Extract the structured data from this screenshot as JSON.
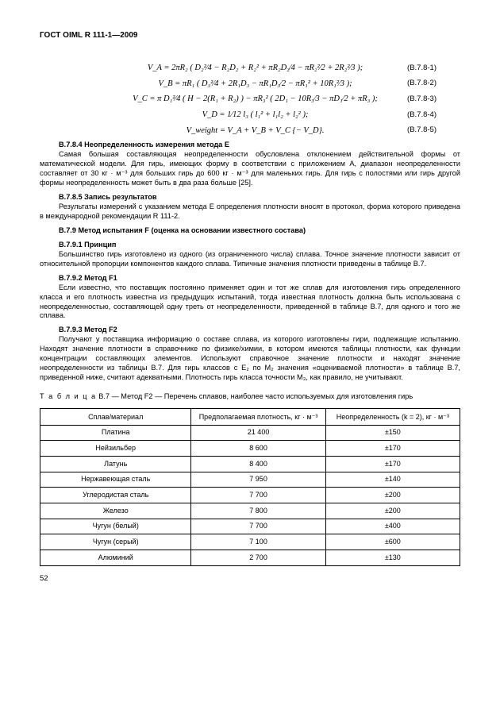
{
  "header": "ГОСТ OIML R 111-1—2009",
  "formulas": [
    {
      "expr": "V_A = 2πR₂ ( D₂²⁄4 − R₂D₂ + R₂² + πR₂D₂⁄4 − πR₂²⁄2 + 2R₂²⁄3 );",
      "ref": "(B.7.8-1)"
    },
    {
      "expr": "V_B = πR₁ ( D₃²⁄4 + 2R₁D₃ − πR₁D₃⁄2 − πR₁² + 10R₁²⁄3 );",
      "ref": "(B.7.8-2)"
    },
    {
      "expr": "V_C = π D₁²⁄4 ( H − 2(R₁ + R₂) ) − πR₃² ( 2D₁ − 10R₃⁄3 − πD₁⁄2 + πR₃ );",
      "ref": "(B.7.8-3)"
    },
    {
      "expr": "V_D = 1⁄12 l₃ ( l₁² + l₁l₂ + l₂² );",
      "ref": "(B.7.8-4)"
    },
    {
      "expr": "V_weight = V_A + V_B + V_C {− V_D}.",
      "ref": "(B.7.8-5)"
    }
  ],
  "sections": {
    "s1_title": "B.7.8.4 Неопределенность измерения метода E",
    "s1_p1": "Самая большая составляющая неопределенности обусловлена отклонением действительной формы от математической модели. Для гирь, имеющих форму в соответствии с приложением A, диапазон неопределенности составляет от 30 кг · м⁻³ для больших гирь до 600 кг · м⁻³ для маленьких гирь. Для гирь с полостями или гирь другой формы неопределенность может быть в два раза больше [25].",
    "s2_title": "B.7.8.5 Запись результатов",
    "s2_p1": "Результаты измерений с указанием метода E определения плотности вносят в протокол, форма которого приведена в международной рекомендации R 111-2.",
    "s3_title": "B.7.9 Метод испытания F (оценка на основании известного состава)",
    "s4_title": "B.7.9.1 Принцип",
    "s4_p1": "Большинство гирь изготовлено из одного (из ограниченного числа) сплава. Точное значение плотности зависит от относительной пропорции компонентов каждого сплава. Типичные значения плотности приведены в таблице B.7.",
    "s5_title": "B.7.9.2 Метод F1",
    "s5_p1": "Если известно, что поставщик постоянно применяет один и тот же сплав для изготовления гирь определенного класса и его плотность известна из предыдущих испытаний, тогда известная плотность должна быть использована с неопределенностью, составляющей одну треть от неопределенности, приведенной в таблице B.7, для одного и того же сплава.",
    "s6_title": "B.7.9.3 Метод F2",
    "s6_p1": "Получают у поставщика информацию о составе сплава, из которого изготовлены гири, подлежащие испытанию. Находят значение плотности в справочнике по физике/химии, в котором имеются таблицы плотности, как функции концентрации составляющих элементов. Используют справочное значение плотности и находят значение неопределенности из таблицы B.7. Для гирь классов с E₂ по M₂ значения «оцениваемой плотности» в таблице B.7, приведенной ниже, считают адекватными. Плотность гирь класса точности M₃, как правило, не учитывают."
  },
  "table_caption_prefix": "Т а б л и ц а",
  "table_caption_rest": "  B.7 — Метод F2 — Перечень сплавов, наиболее часто используемых для изготовления гирь",
  "table": {
    "headers": [
      "Сплав/материал",
      "Предполагаемая плотность,\nкг · м⁻³",
      "Неопределенность (k = 2),\nкг · м⁻³"
    ],
    "rows": [
      [
        "Платина",
        "21 400",
        "±150"
      ],
      [
        "Нейзильбер",
        "8 600",
        "±170"
      ],
      [
        "Латунь",
        "8 400",
        "±170"
      ],
      [
        "Нержавеющая сталь",
        "7 950",
        "±140"
      ],
      [
        "Углеродистая сталь",
        "7 700",
        "±200"
      ],
      [
        "Железо",
        "7 800",
        "±200"
      ],
      [
        "Чугун (белый)",
        "7 700",
        "±400"
      ],
      [
        "Чугун (серый)",
        "7 100",
        "±600"
      ],
      [
        "Алюминий",
        "2 700",
        "±130"
      ]
    ]
  },
  "page_num": "52"
}
